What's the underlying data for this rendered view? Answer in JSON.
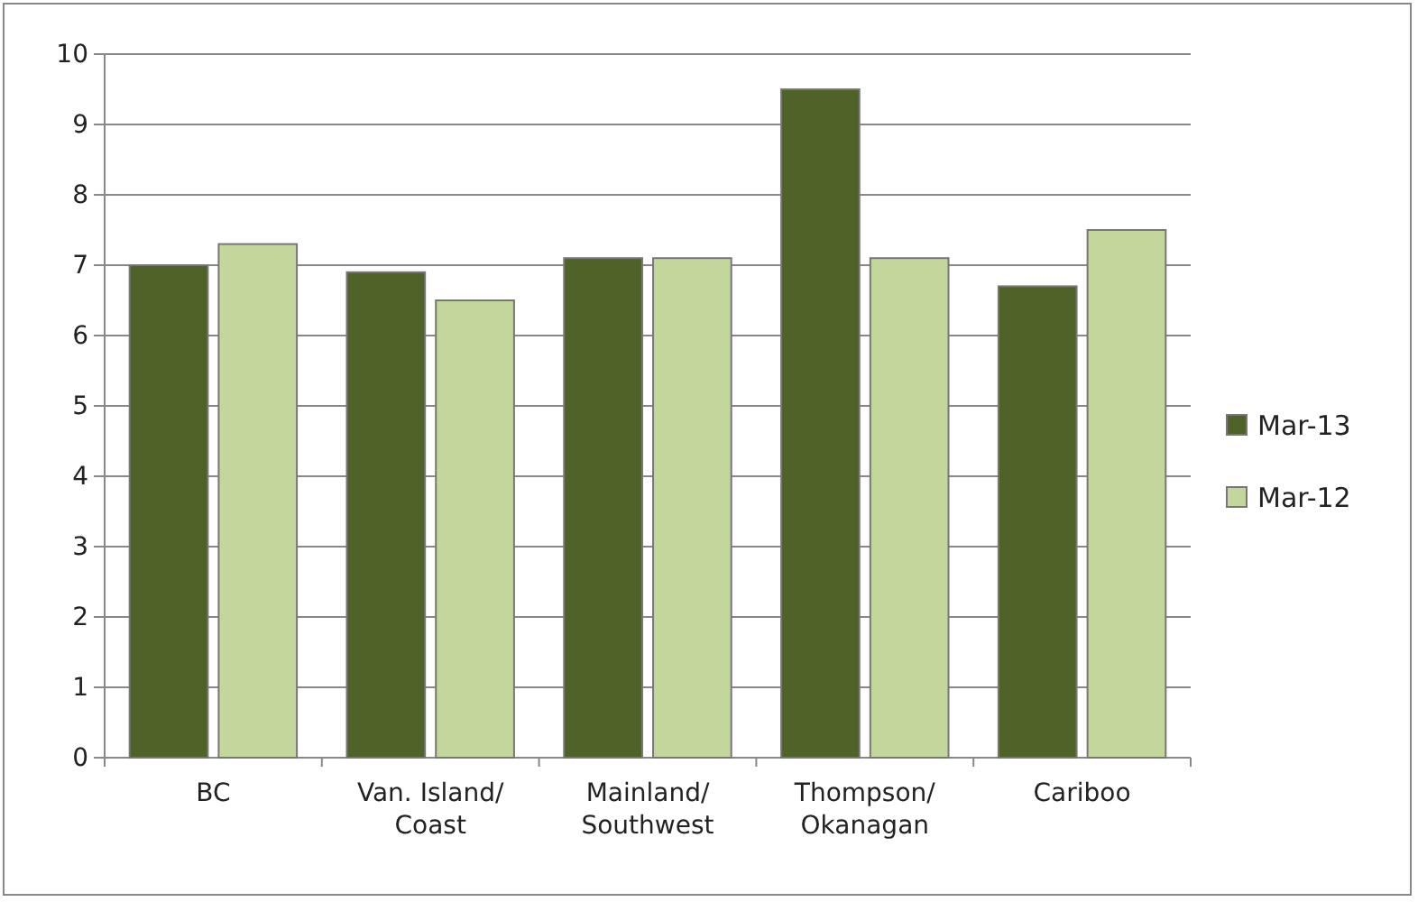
{
  "chart_data": {
    "type": "bar",
    "categories": [
      "BC",
      "Van. Island/Coast",
      "Mainland/Southwest",
      "Thompson/Okanagan",
      "Cariboo"
    ],
    "series": [
      {
        "name": "Mar-13",
        "color": "#4f6228",
        "values": [
          7.0,
          6.9,
          7.1,
          9.5,
          6.7
        ]
      },
      {
        "name": "Mar-12",
        "color": "#c3d69b",
        "values": [
          7.3,
          6.5,
          7.1,
          7.1,
          7.5
        ]
      }
    ],
    "ylim": [
      0,
      10
    ],
    "yticks": [
      0,
      1,
      2,
      3,
      4,
      5,
      6,
      7,
      8,
      9,
      10
    ],
    "grid": "y",
    "legend": "right"
  }
}
